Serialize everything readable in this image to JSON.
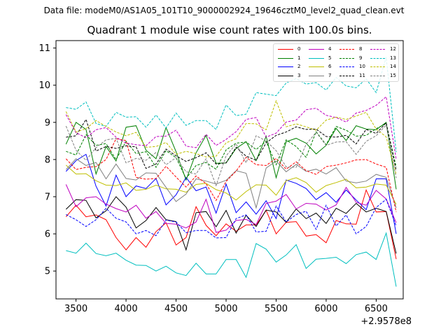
{
  "chart_data": {
    "type": "line",
    "suptitle": "Data file: modeM0/AS1A05_101T10_9000002924_19646cztM0_level2_quad_clean.evt",
    "title": "Quadrant 1 module wise count rates with 100.0s bins.",
    "xlabel": "",
    "ylabel": "",
    "x_offset_label": "+2.9578e8",
    "xlim": [
      3300,
      6770
    ],
    "ylim": [
      4.25,
      11.2
    ],
    "xticks": [
      3500,
      4000,
      4500,
      5000,
      5500,
      6000,
      6500
    ],
    "yticks": [
      5,
      6,
      7,
      8,
      9,
      10,
      11
    ],
    "legend_position": "top-right",
    "x": [
      3400,
      3500,
      3600,
      3700,
      3800,
      3900,
      4000,
      4100,
      4200,
      4300,
      4400,
      4500,
      4600,
      4700,
      4800,
      4900,
      5000,
      5100,
      5200,
      5300,
      5400,
      5500,
      5600,
      5700,
      5800,
      5900,
      6000,
      6100,
      6200,
      6300,
      6400,
      6500,
      6600,
      6700
    ],
    "series": [
      {
        "name": "0",
        "color": "#ff0000",
        "dash": "solid",
        "values": [
          6.46,
          6.77,
          6.46,
          6.51,
          6.38,
          5.9,
          5.57,
          5.9,
          5.64,
          6.06,
          6.3,
          5.7,
          5.9,
          6.73,
          6.23,
          5.95,
          6.27,
          6.07,
          6.24,
          6.24,
          6.63,
          6.0,
          6.31,
          6.33,
          5.94,
          5.98,
          5.76,
          6.36,
          6.27,
          6.26,
          7.18,
          6.59,
          6.6,
          5.32
        ]
      },
      {
        "name": "1",
        "color": "#008000",
        "dash": "solid",
        "values": [
          8.41,
          9.0,
          8.81,
          7.61,
          8.35,
          7.96,
          8.87,
          8.91,
          8.25,
          8.02,
          8.86,
          8.21,
          7.45,
          8.18,
          8.65,
          7.9,
          7.91,
          8.3,
          8.48,
          7.97,
          8.63,
          7.51,
          8.48,
          8.57,
          8.44,
          8.15,
          8.38,
          8.84,
          8.51,
          8.91,
          8.82,
          8.8,
          9.0,
          7.2
        ]
      },
      {
        "name": "2",
        "color": "#0000ff",
        "dash": "solid",
        "values": [
          7.68,
          7.97,
          8.14,
          7.28,
          6.75,
          7.58,
          7.0,
          7.29,
          7.22,
          7.49,
          6.78,
          7.05,
          7.52,
          7.16,
          7.26,
          6.56,
          7.34,
          6.57,
          6.86,
          6.53,
          6.89,
          6.41,
          7.45,
          7.36,
          7.22,
          6.92,
          7.11,
          6.85,
          7.18,
          6.91,
          6.65,
          7.48,
          7.48,
          6.0
        ]
      },
      {
        "name": "3",
        "color": "#000000",
        "dash": "solid",
        "values": [
          6.66,
          6.92,
          6.9,
          6.43,
          6.62,
          7.0,
          6.72,
          6.16,
          6.36,
          6.71,
          6.38,
          6.33,
          5.57,
          6.57,
          6.6,
          6.19,
          6.63,
          6.02,
          6.5,
          6.2,
          6.64,
          6.59,
          6.31,
          6.67,
          6.41,
          6.56,
          6.28,
          6.69,
          6.55,
          6.82,
          6.59,
          6.69,
          6.6,
          5.47
        ]
      },
      {
        "name": "4",
        "color": "#bf00bf",
        "dash": "solid",
        "values": [
          7.33,
          6.73,
          6.97,
          7.0,
          6.8,
          6.68,
          6.59,
          6.77,
          6.42,
          6.6,
          6.28,
          6.26,
          6.16,
          6.32,
          6.93,
          6.04,
          6.1,
          6.36,
          6.39,
          6.25,
          6.82,
          6.88,
          7.06,
          6.67,
          6.82,
          6.8,
          6.64,
          6.78,
          7.25,
          6.85,
          6.77,
          7.17,
          6.94,
          6.3
        ]
      },
      {
        "name": "5",
        "color": "#00bfbf",
        "dash": "solid",
        "values": [
          5.55,
          5.48,
          5.75,
          5.47,
          5.41,
          5.48,
          5.29,
          5.16,
          5.15,
          5.0,
          5.13,
          4.95,
          4.88,
          5.21,
          4.92,
          4.92,
          5.31,
          5.31,
          4.83,
          5.74,
          5.59,
          5.24,
          5.43,
          5.71,
          5.07,
          5.32,
          5.34,
          5.37,
          5.2,
          5.44,
          5.51,
          5.31,
          6.02,
          4.58
        ]
      },
      {
        "name": "6",
        "color": "#bfbf00",
        "dash": "solid",
        "values": [
          7.85,
          7.61,
          7.62,
          7.43,
          7.31,
          7.3,
          7.37,
          7.17,
          7.2,
          7.31,
          7.21,
          7.2,
          7.12,
          7.33,
          7.36,
          7.19,
          7.1,
          6.91,
          7.14,
          7.32,
          7.31,
          7.04,
          7.43,
          7.51,
          7.38,
          7.12,
          7.3,
          7.38,
          7.47,
          7.24,
          7.26,
          7.34,
          7.31,
          6.79
        ]
      },
      {
        "name": "7",
        "color": "#808080",
        "dash": "solid",
        "values": [
          7.73,
          8.02,
          7.84,
          7.92,
          7.48,
          7.88,
          7.49,
          7.45,
          7.64,
          7.63,
          7.25,
          6.87,
          7.07,
          7.48,
          7.42,
          7.34,
          7.44,
          7.7,
          7.63,
          6.7,
          7.77,
          7.96,
          7.67,
          7.87,
          7.68,
          7.74,
          7.61,
          7.78,
          7.42,
          7.37,
          7.42,
          7.6,
          7.52,
          6.7
        ]
      },
      {
        "name": "8",
        "color": "#ff0000",
        "dash": "dashed",
        "values": [
          8.02,
          7.73,
          7.79,
          7.81,
          8.0,
          8.56,
          8.51,
          7.52,
          7.47,
          7.49,
          7.82,
          7.53,
          7.26,
          7.56,
          7.35,
          6.9,
          7.41,
          7.69,
          8.06,
          7.86,
          7.84,
          8.03,
          7.74,
          7.94,
          7.7,
          7.6,
          7.81,
          7.85,
          7.91,
          7.99,
          8.0,
          7.88,
          7.79,
          6.59
        ]
      },
      {
        "name": "9",
        "color": "#008000",
        "dash": "dashed",
        "values": [
          8.22,
          8.12,
          8.67,
          8.38,
          8.43,
          8.0,
          8.49,
          8.16,
          8.21,
          7.79,
          8.24,
          8.05,
          7.49,
          7.84,
          7.92,
          7.74,
          8.26,
          8.44,
          8.47,
          8.27,
          8.49,
          7.86,
          8.53,
          8.35,
          8.06,
          8.75,
          8.4,
          8.89,
          8.79,
          8.63,
          8.65,
          8.83,
          8.97,
          7.8
        ]
      },
      {
        "name": "10",
        "color": "#0000ff",
        "dash": "dashed",
        "values": [
          6.52,
          6.38,
          6.2,
          6.38,
          6.69,
          6.42,
          6.32,
          6.0,
          6.09,
          5.95,
          6.37,
          6.32,
          6.03,
          6.09,
          6.09,
          5.89,
          5.9,
          6.41,
          6.51,
          6.05,
          6.07,
          6.75,
          6.32,
          6.52,
          6.61,
          6.12,
          6.77,
          6.21,
          6.51,
          6.0,
          6.2,
          6.71,
          6.93,
          6.21
        ]
      },
      {
        "name": "11",
        "color": "#000000",
        "dash": "dashed",
        "values": [
          8.6,
          8.64,
          9.08,
          8.23,
          8.35,
          8.3,
          8.37,
          8.34,
          7.76,
          7.88,
          8.28,
          8.1,
          7.95,
          8.05,
          8.18,
          7.88,
          7.91,
          8.33,
          8.09,
          7.98,
          8.45,
          8.65,
          8.74,
          8.88,
          8.81,
          8.82,
          8.62,
          8.6,
          8.65,
          8.42,
          8.81,
          8.7,
          8.99,
          7.7
        ]
      },
      {
        "name": "12",
        "color": "#bf00bf",
        "dash": "dashed",
        "values": [
          9.21,
          8.72,
          8.59,
          8.8,
          8.86,
          8.6,
          8.44,
          8.4,
          8.37,
          8.62,
          8.63,
          8.79,
          8.36,
          8.32,
          8.68,
          8.38,
          8.54,
          8.75,
          9.08,
          9.13,
          8.6,
          8.71,
          9.01,
          9.06,
          9.34,
          9.38,
          9.19,
          9.13,
          9.01,
          9.25,
          9.32,
          9.46,
          9.69,
          8.0
        ]
      },
      {
        "name": "13",
        "color": "#00bfbf",
        "dash": "dashed",
        "values": [
          9.4,
          9.35,
          9.55,
          8.97,
          8.89,
          9.27,
          9.14,
          9.15,
          8.87,
          9.2,
          8.85,
          9.25,
          8.92,
          9.05,
          9.05,
          8.81,
          9.47,
          9.18,
          9.22,
          9.8,
          9.76,
          9.72,
          10.06,
          10.18,
          10.03,
          10.07,
          9.87,
          10.21,
          9.98,
          9.93,
          10.17,
          9.8,
          10.76,
          8.2
        ]
      },
      {
        "name": "14",
        "color": "#bfbf00",
        "dash": "dashed",
        "values": [
          9.29,
          8.74,
          8.83,
          9.05,
          8.89,
          8.74,
          8.64,
          8.73,
          8.33,
          8.35,
          8.46,
          8.14,
          8.22,
          8.16,
          8.07,
          8.09,
          8.45,
          8.56,
          8.97,
          8.96,
          8.8,
          9.58,
          8.88,
          8.96,
          8.88,
          8.79,
          9.06,
          9.14,
          9.08,
          9.17,
          9.27,
          8.82,
          8.61,
          7.6
        ]
      },
      {
        "name": "15",
        "color": "#808080",
        "dash": "dashed",
        "values": [
          8.9,
          8.25,
          7.98,
          8.32,
          8.53,
          8.57,
          7.91,
          8.03,
          7.98,
          8.19,
          7.86,
          8.05,
          7.67,
          7.61,
          8.02,
          7.3,
          8.1,
          8.42,
          7.91,
          8.64,
          8.5,
          8.24,
          7.8,
          7.79,
          8.41,
          8.73,
          8.38,
          8.47,
          8.48,
          8.14,
          8.49,
          8.64,
          8.93,
          7.5
        ]
      }
    ]
  }
}
